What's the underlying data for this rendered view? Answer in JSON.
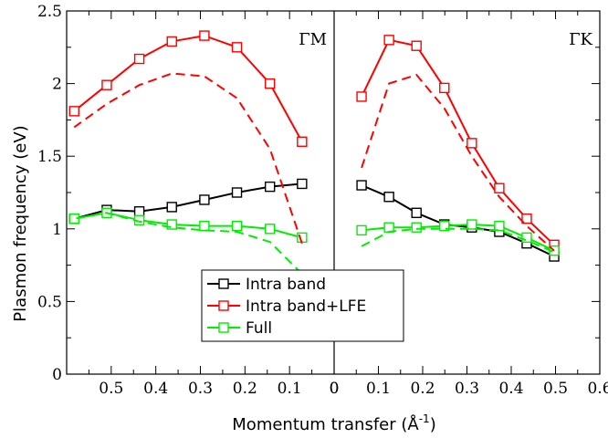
{
  "chart_data": {
    "type": "line",
    "ylabel": "Plasmon frequency (eV)",
    "xlabel": "Momentum transfer (Å",
    "xlabel_sup": "-1",
    "xlabel_end": ")",
    "ylim": [
      0,
      2.5
    ],
    "yticks": [
      {
        "v": 0,
        "label": "0"
      },
      {
        "v": 0.5,
        "label": "0.5"
      },
      {
        "v": 1,
        "label": "1"
      },
      {
        "v": 1.5,
        "label": "1.5"
      },
      {
        "v": 2,
        "label": "2"
      },
      {
        "v": 2.5,
        "label": "2.5"
      }
    ],
    "legend": {
      "position": "bottom-center",
      "entries": [
        {
          "name": "Intra band",
          "color": "#000000"
        },
        {
          "name": "Intra band+LFE",
          "color": "#ff0000"
        },
        {
          "name": "Full",
          "color": "#00ee00"
        }
      ]
    },
    "panels": [
      {
        "title": "ΓM",
        "xlim": [
          0,
          0.6
        ],
        "xaxis_direction": "descending",
        "xticks": [
          {
            "v": 0.6,
            "label": "0"
          },
          {
            "v": 0.5,
            "label": "0.1"
          },
          {
            "v": 0.4,
            "label": "0.2"
          },
          {
            "v": 0.3,
            "label": "0.3"
          },
          {
            "v": 0.2,
            "label": "0.4"
          },
          {
            "v": 0.1,
            "label": "0.5"
          }
        ],
        "series": [
          {
            "name": "Intra band",
            "color": "#000000",
            "style": "solid",
            "markers": true,
            "x": [
              0.528,
              0.456,
              0.382,
              0.309,
              0.236,
              0.163,
              0.09,
              0.017
            ],
            "y": [
              1.31,
              1.29,
              1.25,
              1.2,
              1.15,
              1.12,
              1.13,
              1.07
            ]
          },
          {
            "name": "Intra band+LFE",
            "color": "#ff0000",
            "style": "solid",
            "markers": true,
            "x": [
              0.528,
              0.456,
              0.382,
              0.309,
              0.236,
              0.163,
              0.09,
              0.017
            ],
            "y": [
              1.6,
              2.0,
              2.25,
              2.33,
              2.29,
              2.17,
              1.99,
              1.81
            ]
          },
          {
            "name": "Full",
            "color": "#00ee00",
            "style": "solid",
            "markers": true,
            "x": [
              0.528,
              0.456,
              0.382,
              0.309,
              0.236,
              0.163,
              0.09,
              0.017
            ],
            "y": [
              0.94,
              1.0,
              1.02,
              1.02,
              1.03,
              1.06,
              1.11,
              1.07
            ]
          },
          {
            "color": "#ff0000",
            "style": "dashed",
            "markers": false,
            "x": [
              0.528,
              0.456,
              0.382,
              0.309,
              0.236,
              0.163,
              0.09,
              0.017
            ],
            "y": [
              0.9,
              1.55,
              1.9,
              2.05,
              2.07,
              1.99,
              1.86,
              1.7
            ]
          },
          {
            "color": "#00ee00",
            "style": "dashed",
            "markers": false,
            "x": [
              0.528,
              0.456,
              0.382,
              0.309,
              0.236,
              0.163,
              0.09,
              0.017
            ],
            "y": [
              0.69,
              0.91,
              0.98,
              0.99,
              1.01,
              1.05,
              1.11,
              1.07
            ]
          }
        ]
      },
      {
        "title": "ΓK",
        "xlim": [
          0,
          0.6
        ],
        "xaxis_direction": "ascending",
        "xticks": [
          {
            "v": 0,
            "label": "0"
          },
          {
            "v": 0.1,
            "label": "0.1"
          },
          {
            "v": 0.2,
            "label": "0.2"
          },
          {
            "v": 0.3,
            "label": "0.3"
          },
          {
            "v": 0.4,
            "label": "0.4"
          },
          {
            "v": 0.5,
            "label": "0.5"
          },
          {
            "v": 0.6,
            "label": "0.6"
          }
        ],
        "series": [
          {
            "name": "Intra band",
            "color": "#000000",
            "style": "solid",
            "markers": true,
            "x": [
              0.062,
              0.124,
              0.186,
              0.249,
              0.311,
              0.373,
              0.435,
              0.497
            ],
            "y": [
              1.3,
              1.22,
              1.11,
              1.03,
              1.01,
              0.98,
              0.9,
              0.81
            ]
          },
          {
            "name": "Intra band+LFE",
            "color": "#ff0000",
            "style": "solid",
            "markers": true,
            "x": [
              0.062,
              0.124,
              0.186,
              0.249,
              0.311,
              0.373,
              0.435,
              0.497
            ],
            "y": [
              1.91,
              2.3,
              2.26,
              1.97,
              1.59,
              1.28,
              1.07,
              0.89
            ]
          },
          {
            "name": "Full",
            "color": "#00ee00",
            "style": "solid",
            "markers": true,
            "x": [
              0.062,
              0.124,
              0.186,
              0.249,
              0.311,
              0.373,
              0.435,
              0.497
            ],
            "y": [
              0.99,
              1.01,
              1.01,
              1.02,
              1.03,
              1.02,
              0.94,
              0.85
            ]
          },
          {
            "color": "#ff0000",
            "style": "dashed",
            "markers": false,
            "x": [
              0.062,
              0.124,
              0.186,
              0.249,
              0.311,
              0.373,
              0.435,
              0.497
            ],
            "y": [
              1.42,
              2.0,
              2.06,
              1.83,
              1.5,
              1.22,
              1.02,
              0.85
            ]
          },
          {
            "color": "#00ee00",
            "style": "dashed",
            "markers": false,
            "x": [
              0.062,
              0.124,
              0.186,
              0.249,
              0.311,
              0.373,
              0.435,
              0.497
            ],
            "y": [
              0.88,
              0.98,
              1.0,
              1.0,
              1.0,
              0.99,
              0.92,
              0.84
            ]
          }
        ]
      }
    ]
  }
}
